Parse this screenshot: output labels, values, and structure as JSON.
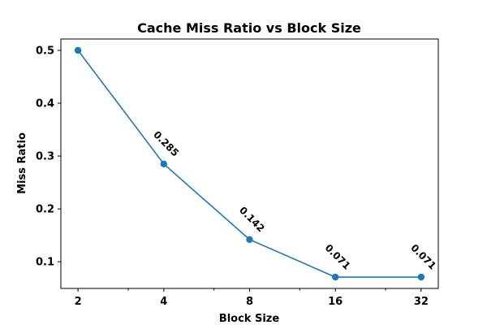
{
  "chart_data": {
    "type": "line",
    "title": "Cache Miss Ratio vs Block Size",
    "xlabel": "Block Size",
    "ylabel": "Miss Ratio",
    "x_scale": "log2",
    "x": [
      2,
      4,
      8,
      16,
      32
    ],
    "x_tick_labels": [
      "2",
      "4",
      "8",
      "16",
      "32"
    ],
    "y_ticks": [
      0.1,
      0.2,
      0.3,
      0.4,
      0.5
    ],
    "y_tick_labels": [
      "0.1",
      "0.2",
      "0.3",
      "0.4",
      "0.5"
    ],
    "ylim": [
      0.0495,
      0.5215
    ],
    "grid": false,
    "series": [
      {
        "values": [
          0.5,
          0.285,
          0.142,
          0.071,
          0.071
        ],
        "color": "#1f77b4",
        "marker": "circle"
      }
    ],
    "data_labels": [
      "",
      "0.285",
      "0.142",
      "0.071",
      "0.071"
    ]
  }
}
